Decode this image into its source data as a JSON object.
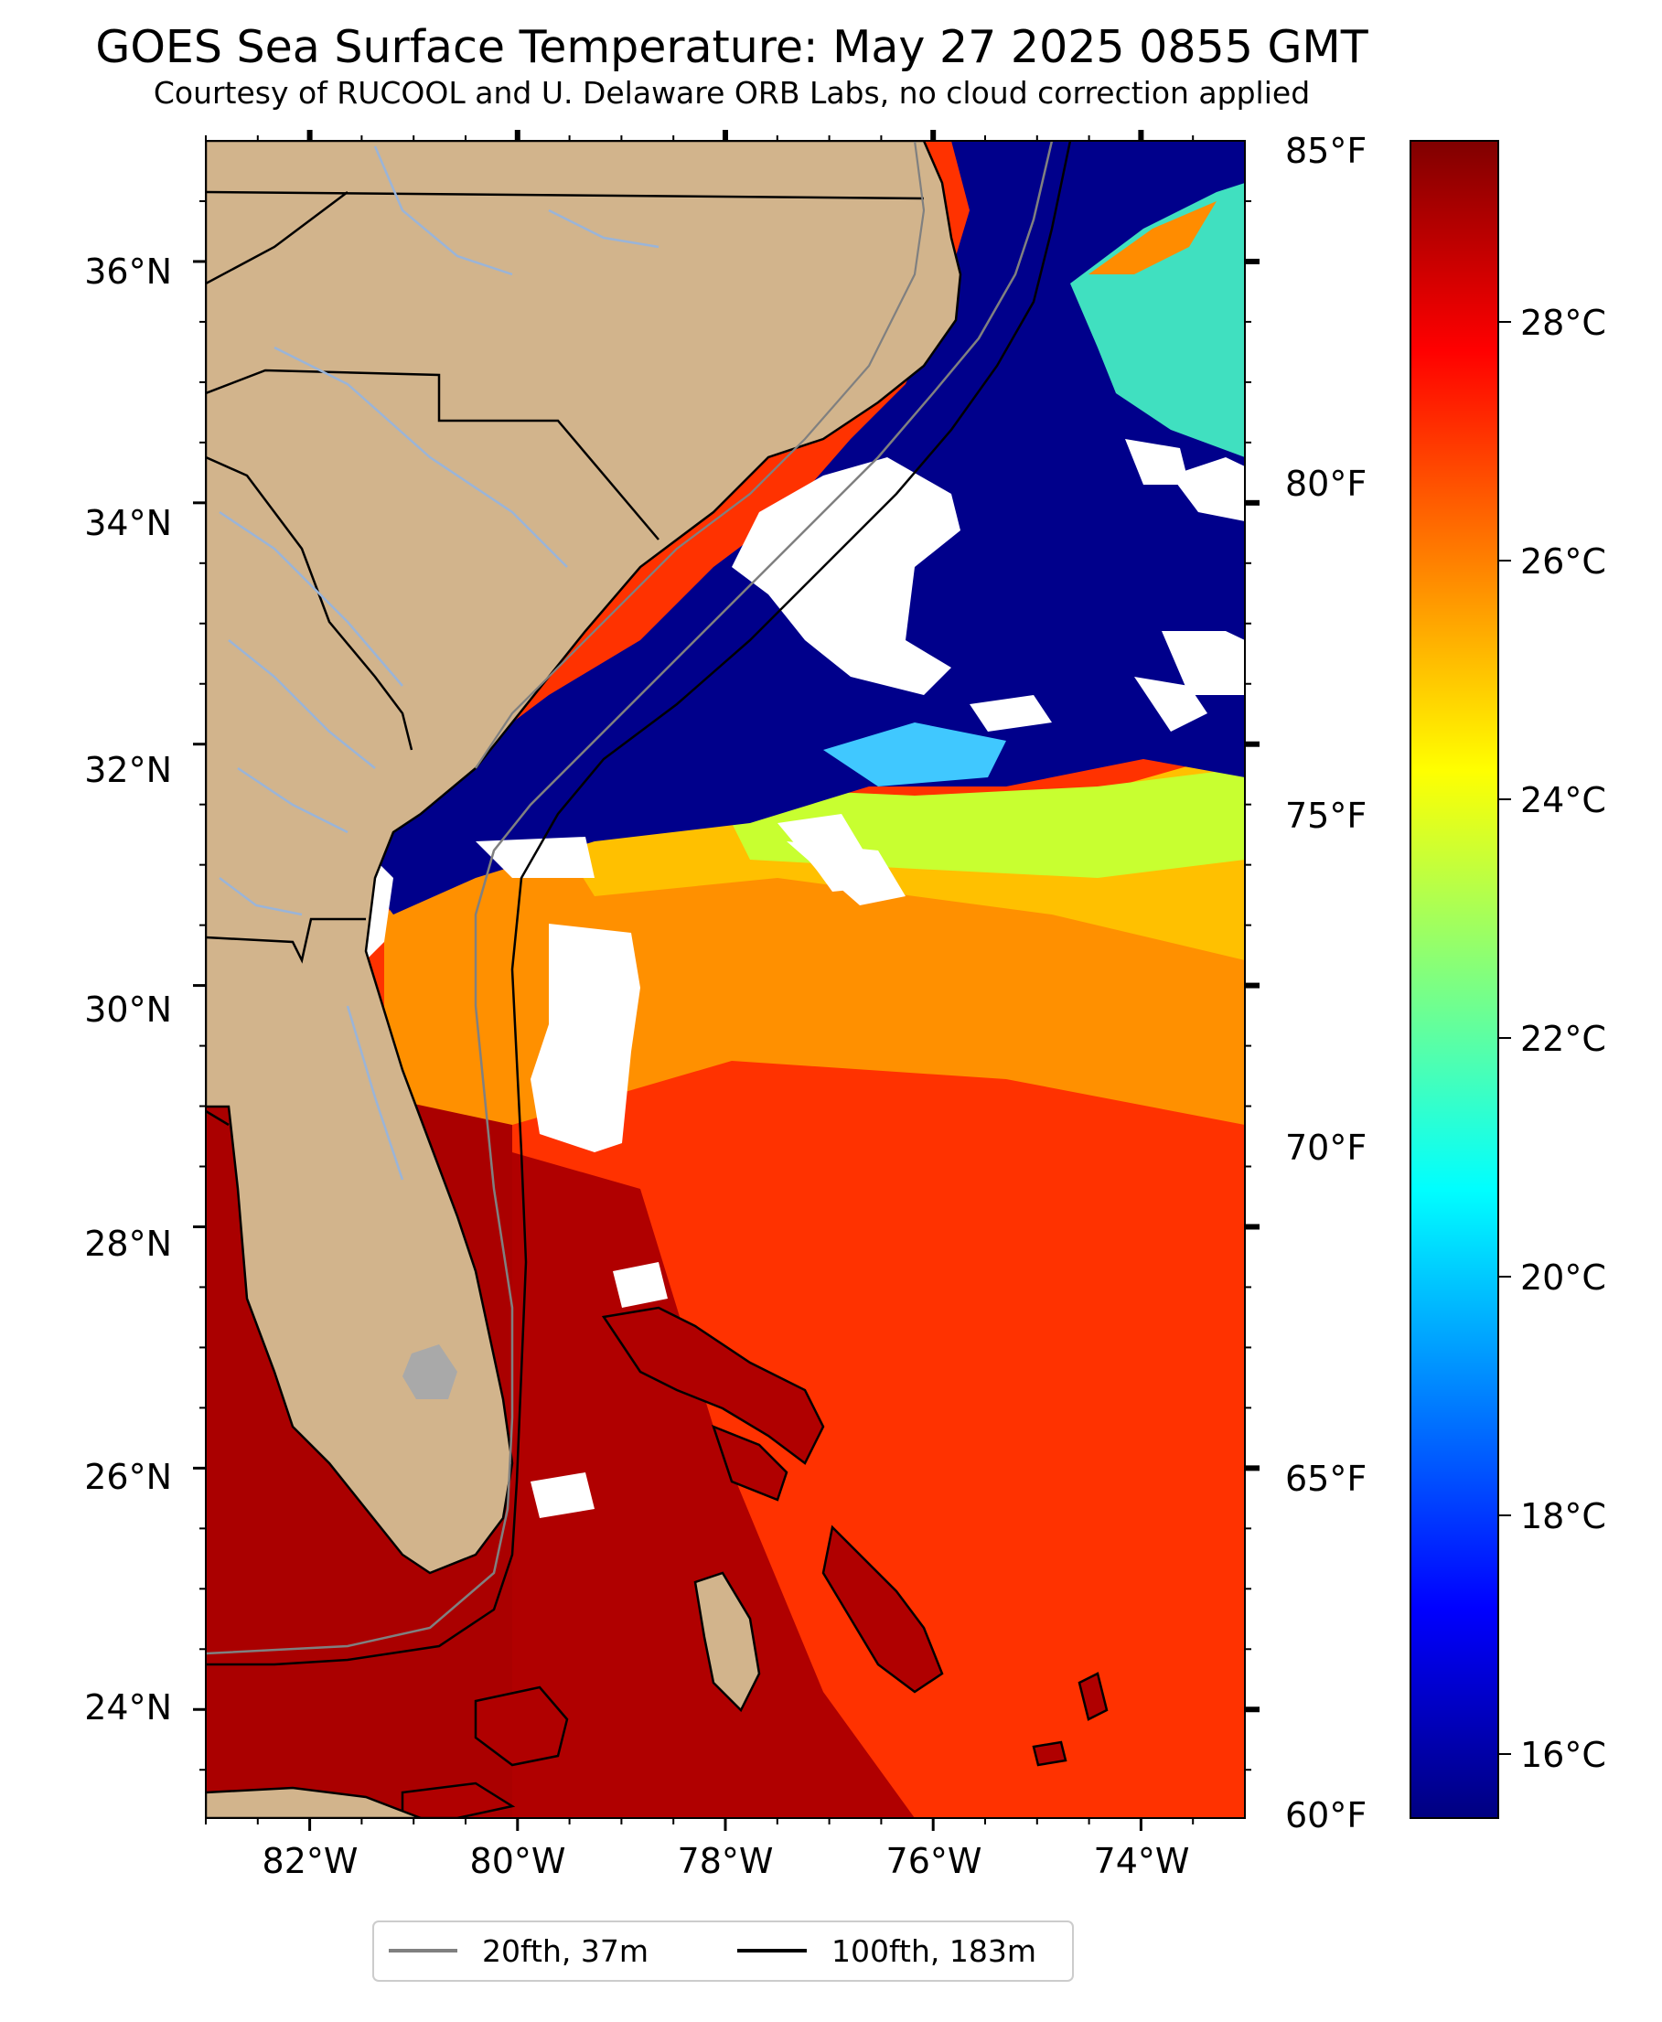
{
  "title": "GOES Sea Surface Temperature: May 27 2025 0855 GMT",
  "subtitle": "Courtesy of RUCOOL and U. Delaware ORB Labs, no cloud correction applied",
  "map": {
    "lon_range": [
      -83,
      -73
    ],
    "lat_range": [
      23.1,
      37.0
    ],
    "lon_ticks": [
      "82°W",
      "80°W",
      "78°W",
      "76°W",
      "74°W"
    ],
    "lat_ticks": [
      "36°N",
      "34°N",
      "32°N",
      "30°N",
      "28°N",
      "26°N",
      "24°N"
    ],
    "colors": {
      "land": "#d2b48c",
      "cloud": "#ffffff",
      "cold_water": "#00008b"
    }
  },
  "colorbar": {
    "colormap": "jet",
    "fahrenheit_labels": [
      "85°F",
      "80°F",
      "75°F",
      "70°F",
      "65°F",
      "60°F"
    ],
    "celsius_labels": [
      "28°C",
      "26°C",
      "24°C",
      "22°C",
      "20°C",
      "18°C",
      "16°C"
    ]
  },
  "legend": {
    "items": [
      {
        "label": "20fth, 37m",
        "color": "#808080"
      },
      {
        "label": "100fth, 183m",
        "color": "#000000"
      }
    ]
  }
}
